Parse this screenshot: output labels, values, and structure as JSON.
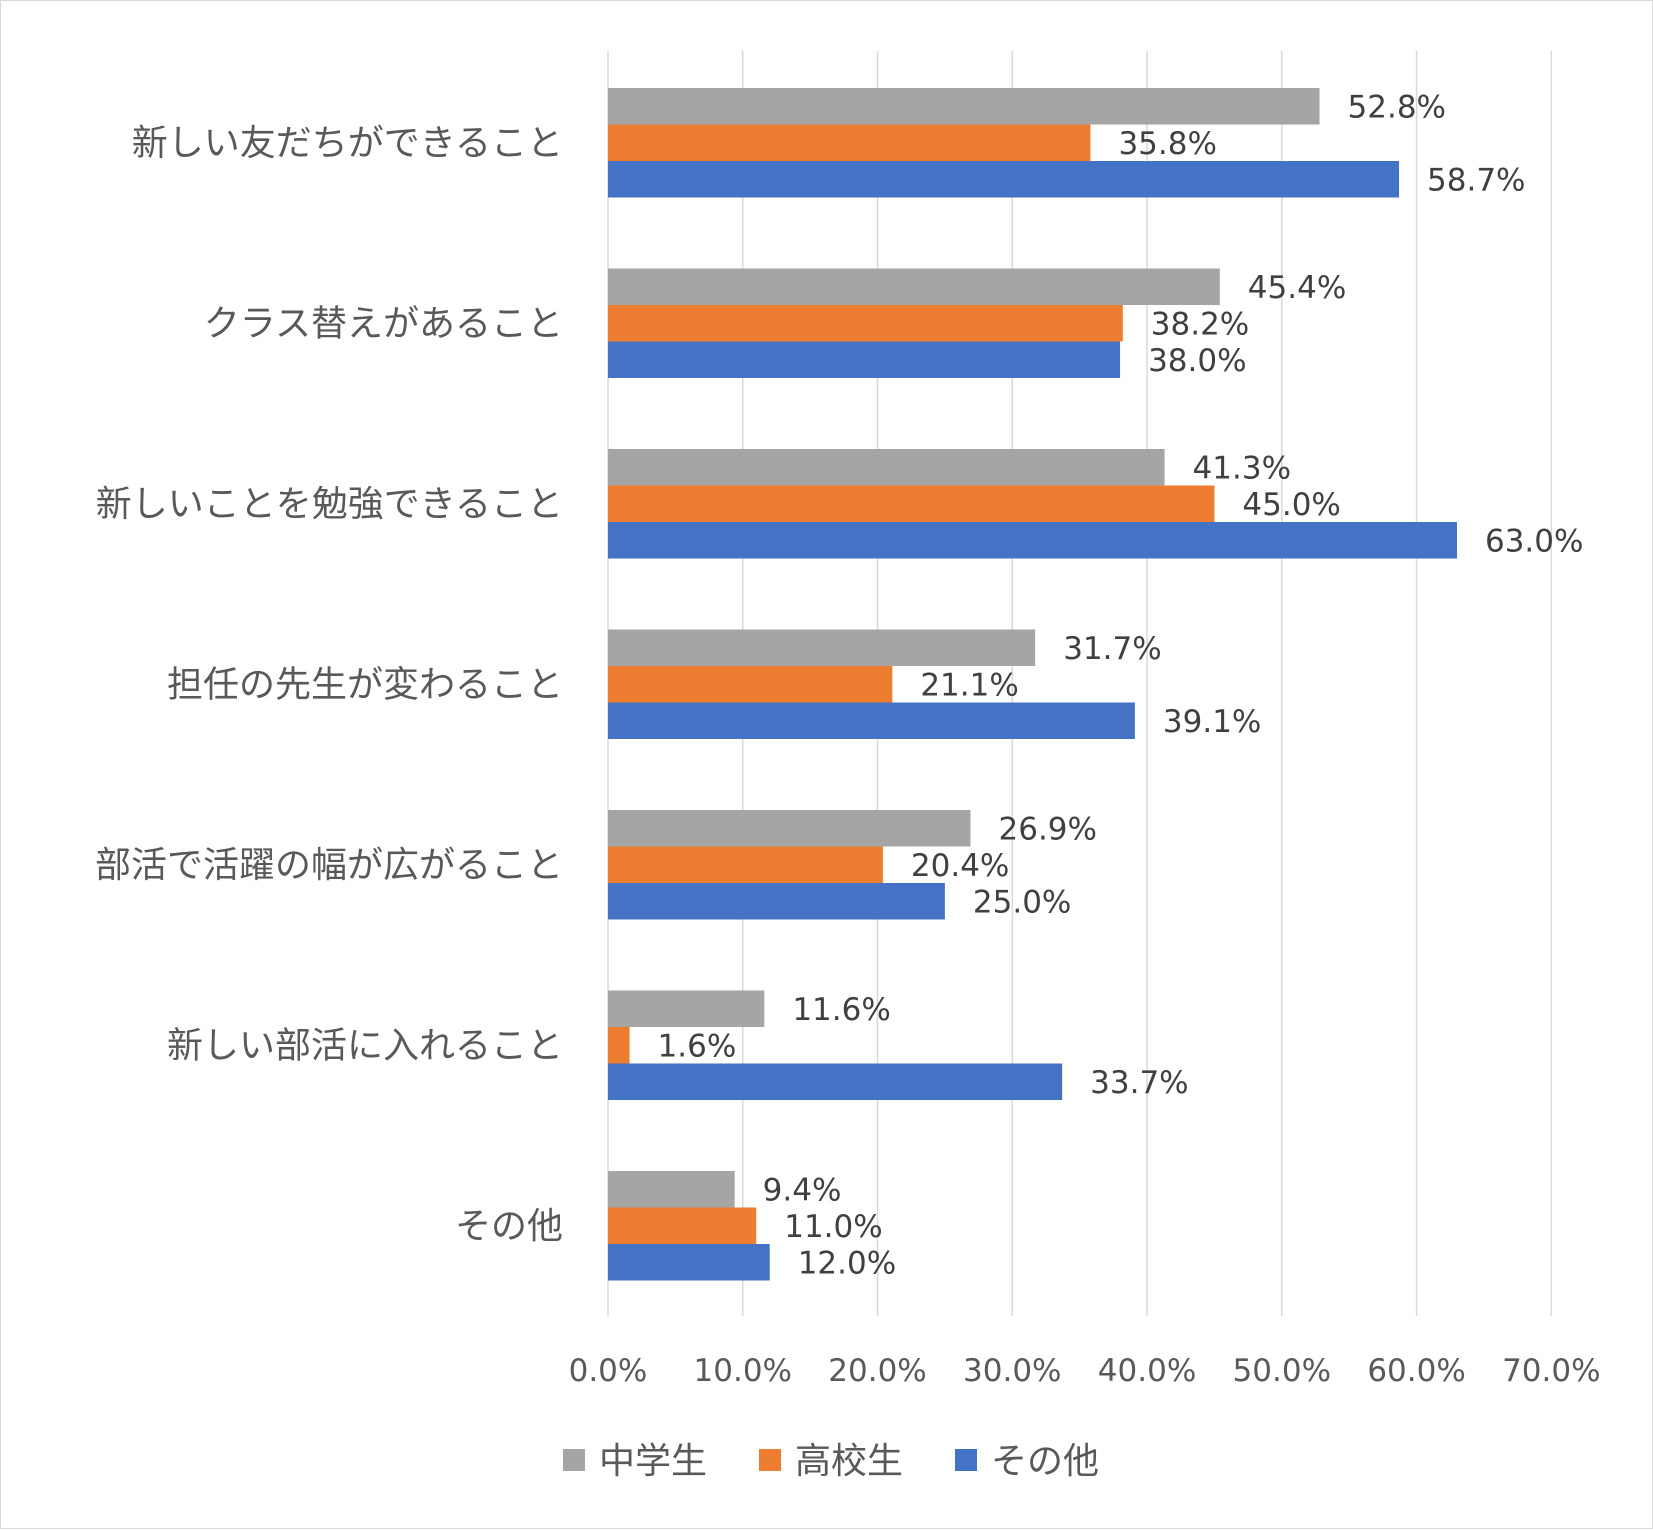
{
  "chart_data": {
    "type": "bar",
    "orientation": "horizontal",
    "title": "",
    "xlabel": "",
    "ylabel": "",
    "xlim": [
      0,
      70
    ],
    "x_ticks": [
      "0.0%",
      "10.0%",
      "20.0%",
      "30.0%",
      "40.0%",
      "50.0%",
      "60.0%",
      "70.0%"
    ],
    "grid": "vertical",
    "legend_position": "bottom",
    "categories": [
      "新しい友だちができること",
      "クラス替えがあること",
      "新しいことを勉強できること",
      "担任の先生が変わること",
      "部活で活躍の幅が広がること",
      "新しい部活に入れること",
      "その他"
    ],
    "series": [
      {
        "name": "中学生",
        "color": "#a5a5a5",
        "values": [
          52.8,
          45.4,
          41.3,
          31.7,
          26.9,
          11.6,
          9.4
        ],
        "labels": [
          "52.8%",
          "45.4%",
          "41.3%",
          "31.7%",
          "26.9%",
          "11.6%",
          "9.4%"
        ]
      },
      {
        "name": "高校生",
        "color": "#ed7d31",
        "values": [
          35.8,
          38.2,
          45.0,
          21.1,
          20.4,
          1.6,
          11.0
        ],
        "labels": [
          "35.8%",
          "38.2%",
          "45.0%",
          "21.1%",
          "20.4%",
          "1.6%",
          "11.0%"
        ]
      },
      {
        "name": "その他",
        "color": "#4472c4",
        "values": [
          58.7,
          38.0,
          63.0,
          39.1,
          25.0,
          33.7,
          12.0
        ],
        "labels": [
          "58.7%",
          "38.0%",
          "63.0%",
          "39.1%",
          "25.0%",
          "33.7%",
          "12.0%"
        ]
      }
    ]
  }
}
